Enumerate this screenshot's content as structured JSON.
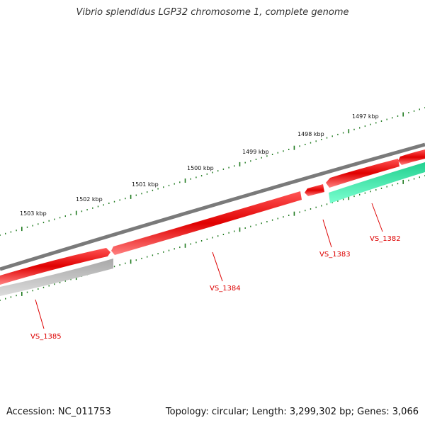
{
  "title": "Vibrio splendidus LGP32 chromosome 1, complete genome",
  "accession_text": "Accession: NC_011753",
  "topology_text": "Topology: circular; Length: 3,299,302 bp; Genes: 3,066",
  "scale_labels": [
    "1497 kbp",
    "1498 kbp",
    "1499 kbp",
    "1500 kbp",
    "1501 kbp",
    "1502 kbp",
    "1503 kbp"
  ],
  "genes": [
    {
      "label": "VS_1382",
      "color": "#33e6a6"
    },
    {
      "label": "VS_1383",
      "color": "#ee0000"
    },
    {
      "label": "VS_1384",
      "color": "#ee0000"
    },
    {
      "label": "VS_1385",
      "color": "#c0c0c0"
    }
  ],
  "colors": {
    "backbone": "#777777",
    "forward": "#ee0000",
    "reverse_other": "#33e6a6",
    "gray_gene": "#c0c0c0",
    "ticks": "#1f7a1f",
    "label": "#dd0000"
  }
}
